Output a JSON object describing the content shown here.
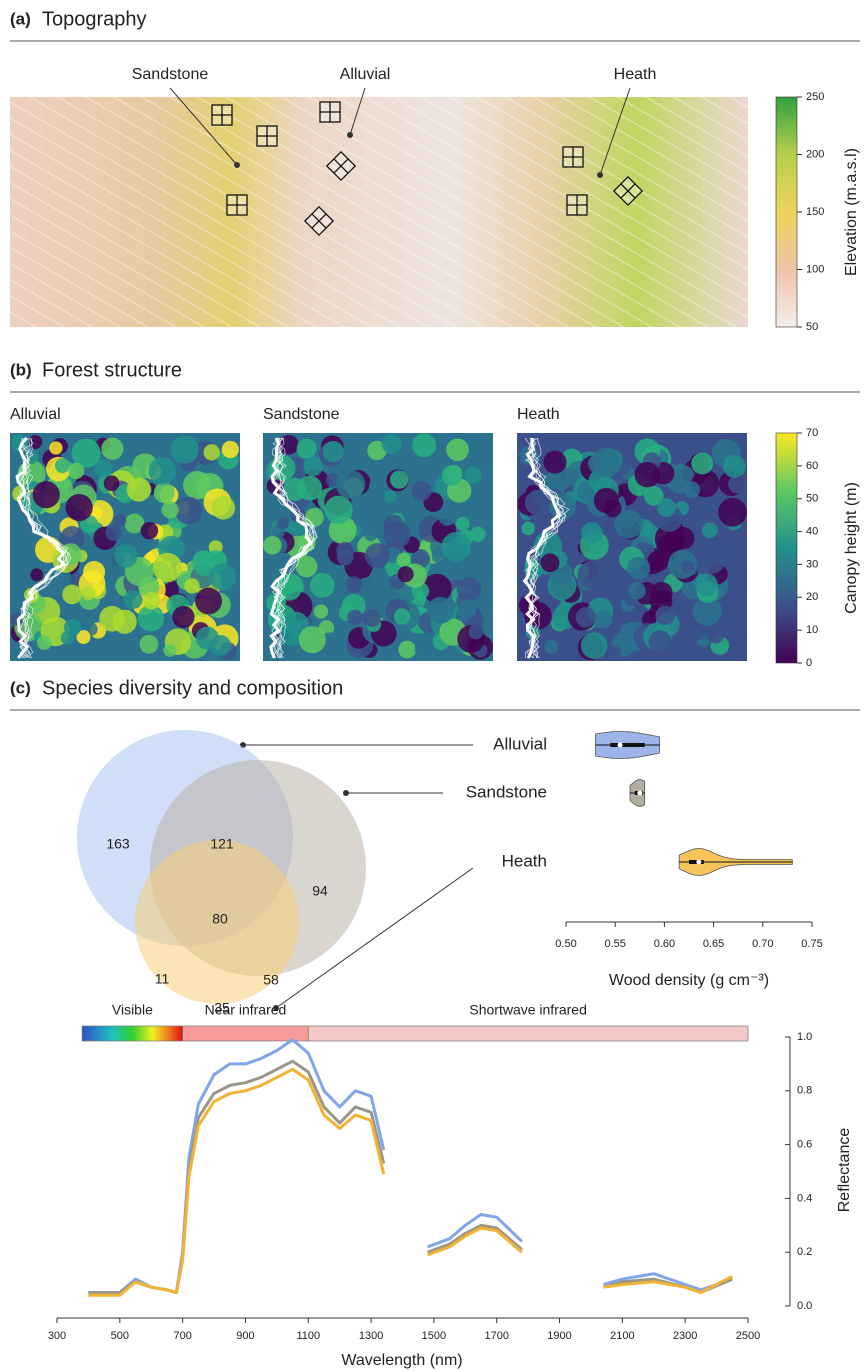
{
  "panels": [
    {
      "tag": "(a)",
      "title": "Topography"
    },
    {
      "tag": "(b)",
      "title": "Forest structure"
    },
    {
      "tag": "(c)",
      "title": "Species diversity and composition"
    }
  ],
  "topography": {
    "site_labels": [
      "Sandstone",
      "Alluvial",
      "Heath"
    ],
    "colorbar": {
      "label": "Elevation (m.a.s.l)",
      "lim": [
        50,
        250
      ],
      "ticks": [
        50,
        100,
        150,
        200,
        250
      ]
    }
  },
  "forest_structure": {
    "panel_labels": [
      "Alluvial",
      "Sandstone",
      "Heath"
    ],
    "colorbar": {
      "label": "Canopy height (m)",
      "lim": [
        0,
        70
      ],
      "ticks": [
        0,
        10,
        20,
        30,
        40,
        50,
        60,
        70
      ]
    }
  },
  "venn": {
    "site_labels": [
      "Alluvial",
      "Sandstone",
      "Heath"
    ],
    "regions": [
      163,
      121,
      94,
      80,
      11,
      58,
      35
    ]
  },
  "chart_data": [
    {
      "type": "violin",
      "xlabel": "Wood density (g cm⁻³)",
      "xlim": [
        0.5,
        0.75
      ],
      "xticks": [
        {
          "value": 0.5,
          "label": "0.50"
        },
        0.55,
        {
          "value": 0.6,
          "label": "0.60"
        },
        0.65,
        {
          "value": 0.7,
          "label": "0.70"
        },
        0.75
      ],
      "series": [
        {
          "color": "#9cb4ea",
          "min": 0.53,
          "q1": 0.545,
          "median": 0.555,
          "q3": 0.58,
          "max": 0.595
        },
        {
          "color": "#b3ada0",
          "min": 0.565,
          "q1": 0.57,
          "median": 0.575,
          "q3": 0.578,
          "max": 0.58
        },
        {
          "color": "#f5c55a",
          "min": 0.615,
          "q1": 0.625,
          "median": 0.635,
          "q3": 0.64,
          "max": 0.73
        }
      ]
    },
    {
      "type": "line",
      "xlabel": "Wavelength (nm)",
      "ylabel": "Reflectance",
      "bands": [
        {
          "label": "Visible",
          "range": [
            380,
            700
          ]
        },
        {
          "label": "Near infrared",
          "range": [
            700,
            1100
          ]
        },
        {
          "label": "Shortwave infrared",
          "range": [
            1100,
            2500
          ]
        }
      ],
      "xlim": [
        300,
        2500
      ],
      "xticks": [
        300,
        500,
        700,
        900,
        1100,
        1300,
        1500,
        1700,
        1900,
        2100,
        2300,
        2500
      ],
      "ylim": [
        0,
        1.0
      ],
      "yticks": [
        {
          "value": 0,
          "label": "0.0"
        },
        0.2,
        0.4,
        0.6,
        0.8,
        {
          "value": 1.0,
          "label": "1.0"
        }
      ],
      "x": [
        400,
        450,
        500,
        550,
        600,
        650,
        680,
        700,
        720,
        750,
        800,
        850,
        900,
        950,
        1000,
        1050,
        1100,
        1150,
        1200,
        1250,
        1300,
        1340,
        1400,
        1480,
        1550,
        1600,
        1650,
        1700,
        1780,
        1900,
        2040,
        2100,
        2200,
        2300,
        2350,
        2450
      ],
      "series": [
        {
          "color": "#7ea6e8",
          "values": [
            0.05,
            0.05,
            0.05,
            0.1,
            0.07,
            0.06,
            0.05,
            0.2,
            0.55,
            0.75,
            0.86,
            0.9,
            0.9,
            0.92,
            0.95,
            0.99,
            0.94,
            0.8,
            0.74,
            0.8,
            0.78,
            0.58,
            null,
            0.22,
            0.25,
            0.3,
            0.34,
            0.33,
            0.24,
            null,
            0.08,
            0.1,
            0.12,
            0.08,
            0.06,
            0.1
          ]
        },
        {
          "color": "#9a968a",
          "values": [
            0.05,
            0.05,
            0.05,
            0.09,
            0.07,
            0.06,
            0.05,
            0.18,
            0.5,
            0.7,
            0.79,
            0.82,
            0.83,
            0.85,
            0.88,
            0.91,
            0.87,
            0.74,
            0.68,
            0.74,
            0.72,
            0.53,
            null,
            0.2,
            0.23,
            0.27,
            0.3,
            0.29,
            0.21,
            null,
            0.07,
            0.09,
            0.1,
            0.07,
            0.05,
            0.1
          ]
        },
        {
          "color": "#f2b232",
          "values": [
            0.04,
            0.04,
            0.04,
            0.09,
            0.07,
            0.06,
            0.05,
            0.17,
            0.48,
            0.67,
            0.76,
            0.79,
            0.8,
            0.82,
            0.85,
            0.88,
            0.84,
            0.71,
            0.66,
            0.71,
            0.69,
            0.49,
            null,
            0.19,
            0.22,
            0.26,
            0.29,
            0.28,
            0.2,
            null,
            0.07,
            0.08,
            0.09,
            0.07,
            0.05,
            0.11
          ]
        }
      ]
    }
  ]
}
